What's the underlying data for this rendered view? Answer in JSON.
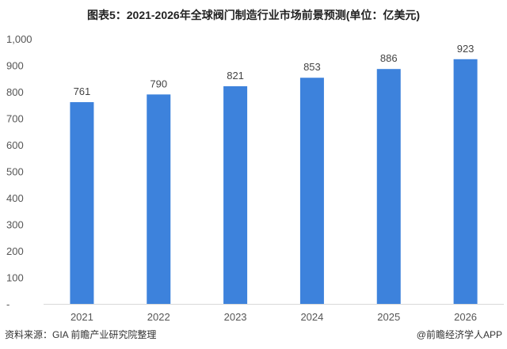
{
  "chart_data": {
    "type": "bar",
    "title": "图表5：2021-2026年全球阀门制造行业市场前景预测(单位：亿美元)",
    "categories": [
      "2021",
      "2022",
      "2023",
      "2024",
      "2025",
      "2026"
    ],
    "values": [
      761,
      790,
      821,
      853,
      886,
      923
    ],
    "ylim": [
      0,
      1000
    ],
    "yticks": [
      0,
      100,
      200,
      300,
      400,
      500,
      600,
      700,
      800,
      900,
      1000
    ],
    "ytick_labels": [
      "-",
      "100",
      "200",
      "300",
      "400",
      "500",
      "600",
      "700",
      "800",
      "900",
      "1,000"
    ],
    "grid": false,
    "bar_color": "#3d82dc",
    "xlabel": "",
    "ylabel": ""
  },
  "source": "资料来源：GIA 前瞻产业研究院整理",
  "brand": "@前瞻经济学人APP"
}
